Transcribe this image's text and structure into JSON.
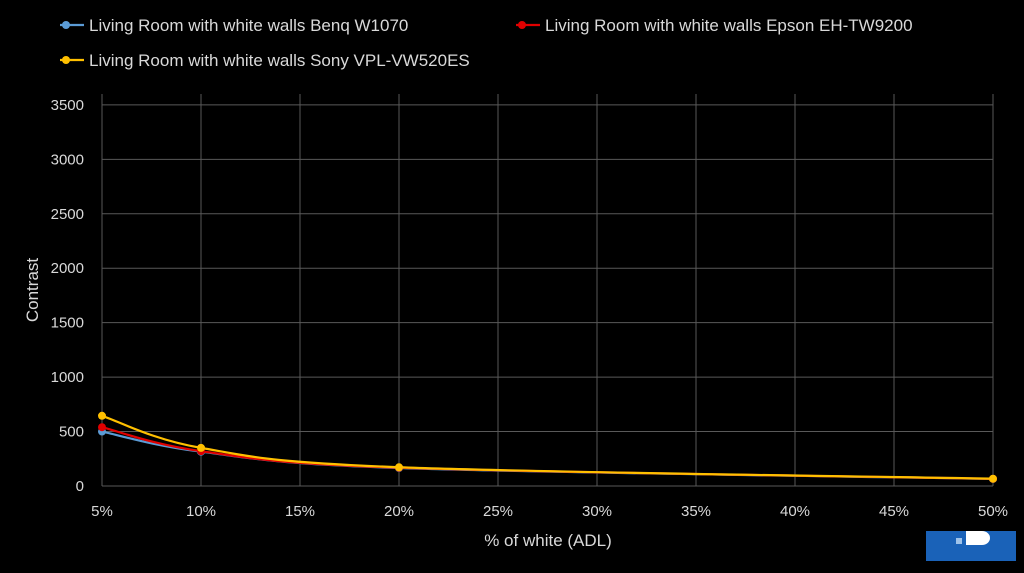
{
  "chart_data": {
    "type": "line",
    "title": "",
    "xlabel": "% of white (ADL)",
    "ylabel": "Contrast",
    "x": [
      5,
      10,
      20,
      50
    ],
    "x_ticks": [
      "5%",
      "10%",
      "15%",
      "20%",
      "25%",
      "30%",
      "35%",
      "40%",
      "45%",
      "50%"
    ],
    "x_tick_values": [
      5,
      10,
      15,
      20,
      25,
      30,
      35,
      40,
      45,
      50
    ],
    "xlim": [
      5,
      50
    ],
    "y_ticks": [
      "0",
      "500",
      "1000",
      "1500",
      "2000",
      "2500",
      "3000",
      "3500"
    ],
    "ylim": [
      0,
      3600
    ],
    "grid": true,
    "legend_position": "top",
    "series": [
      {
        "name": "Living Room with white walls Benq W1070",
        "color": "#5b9bd5",
        "values": [
          500,
          315,
          165,
          65
        ]
      },
      {
        "name": "Living Room with white walls Epson EH-TW9200",
        "color": "#e00000",
        "values": [
          540,
          320,
          168,
          66
        ]
      },
      {
        "name": "Living Room with white walls Sony VPL-VW520ES",
        "color": "#ffc000",
        "values": [
          645,
          350,
          172,
          67
        ]
      }
    ]
  }
}
